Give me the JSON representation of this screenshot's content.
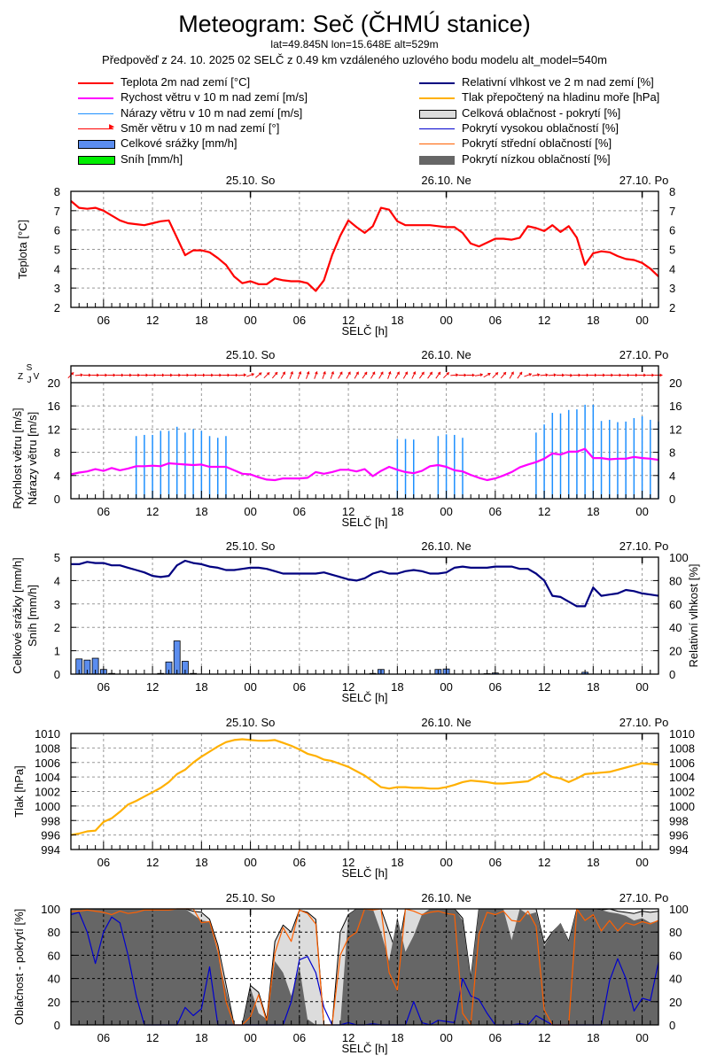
{
  "header": {
    "title": "Meteogram: Seč (ČHMÚ stanice)",
    "location": "lat=49.845N lon=15.648E alt=529m",
    "forecast_info": "Předpověď z 24. 10. 2025 02 SELČ z 0.49 km vzdáleného uzlového bodu modelu alt_model=540m"
  },
  "legend": {
    "left": [
      {
        "label": "Teplota 2m nad zemí [°C]",
        "symbol": "line",
        "color": "#ff0000"
      },
      {
        "label": "Rychost větru v 10 m nad zemí [m/s]",
        "symbol": "line",
        "color": "#ff00ff"
      },
      {
        "label": "Nárazy větru v 10 m nad zemí [m/s]",
        "symbol": "thinline",
        "color": "#1e90ff"
      },
      {
        "label": "Směr větru v 10 m nad zemí [°]",
        "symbol": "arrow",
        "color": "#ff0000"
      },
      {
        "label": "Celkové srážky [mm/h]",
        "symbol": "box",
        "color": "#5b8def"
      },
      {
        "label": "Sníh [mm/h]",
        "symbol": "box",
        "color": "#00ee00"
      }
    ],
    "right": [
      {
        "label": "Relativní vlhkost ve 2 m nad zemí [%]",
        "symbol": "line",
        "color": "#000080"
      },
      {
        "label": "Tlak přepočtený na hladinu moře [hPa]",
        "symbol": "line",
        "color": "#ffb000"
      },
      {
        "label": "Celková oblačnost - pokrytí [%]",
        "symbol": "box",
        "color": "#dcdcdc"
      },
      {
        "label": "Pokrytí vysokou oblačností [%]",
        "symbol": "thinline",
        "color": "#0000cd"
      },
      {
        "label": "Pokrytí střední oblačností [%]",
        "symbol": "thinline",
        "color": "#ff6000"
      },
      {
        "label": "Pokrytí nízkou oblačností [%]",
        "symbol": "solidbox",
        "color": "#666666"
      }
    ]
  },
  "chart_data": [
    {
      "type": "line",
      "id": "temperature",
      "title": "",
      "xlabel": "SELČ [h]",
      "ylabel": "Teplota [°C]",
      "x_start": "24.10. 02:00",
      "x_hours": 72,
      "day_labels": [
        {
          "label": "25.10. So",
          "hour": 22
        },
        {
          "label": "26.10. Ne",
          "hour": 46
        },
        {
          "label": "27.10. Po",
          "hour": 70
        }
      ],
      "xtick_labels": [
        "06",
        "12",
        "18",
        "00",
        "06",
        "12",
        "18",
        "00",
        "06",
        "12",
        "18",
        "00"
      ],
      "ylim": [
        2,
        8
      ],
      "yticks": [
        2,
        3,
        4,
        5,
        6,
        7,
        8
      ],
      "grid": true,
      "series": [
        {
          "name": "Teplota 2m nad zemí [°C]",
          "color": "#ff0000",
          "values": [
            7.5,
            7.15,
            7.1,
            7.15,
            7.0,
            6.75,
            6.5,
            6.35,
            6.3,
            6.25,
            6.35,
            6.45,
            6.5,
            5.6,
            4.7,
            4.95,
            4.95,
            4.85,
            4.55,
            4.2,
            3.6,
            3.25,
            3.35,
            3.2,
            3.2,
            3.5,
            3.4,
            3.35,
            3.35,
            3.25,
            2.85,
            3.4,
            4.7,
            5.7,
            6.5,
            6.15,
            5.85,
            6.2,
            7.15,
            7.05,
            6.45,
            6.25,
            6.25,
            6.25,
            6.25,
            6.2,
            6.15,
            6.15,
            5.85,
            5.3,
            5.15,
            5.35,
            5.55,
            5.55,
            5.5,
            5.6,
            6.2,
            6.1,
            5.95,
            6.25,
            5.9,
            6.2,
            5.6,
            4.2,
            4.8,
            4.9,
            4.85,
            4.65,
            4.5,
            4.45,
            4.3,
            4.0,
            3.6
          ]
        }
      ]
    },
    {
      "type": "line",
      "id": "wind",
      "xlabel": "SELČ [h]",
      "ylabel": "Rychlost větru [m/s]",
      "ylabel2": "Nárazy větru [m/s]",
      "direction_label": {
        "n": "S",
        "w": "Z",
        "s": "J",
        "e": "V"
      },
      "ylim": [
        0,
        20
      ],
      "yticks": [
        0,
        4,
        8,
        12,
        16,
        20
      ],
      "grid": true,
      "series": [
        {
          "name": "Rychost větru v 10 m nad zemí [m/s]",
          "color": "#ff00ff",
          "values": [
            4.2,
            4.5,
            4.7,
            5.1,
            4.8,
            5.3,
            4.9,
            5.2,
            5.6,
            5.6,
            5.7,
            5.6,
            6.1,
            6.0,
            5.9,
            5.8,
            5.9,
            5.5,
            5.5,
            5.5,
            4.9,
            4.3,
            4.2,
            3.7,
            3.3,
            3.2,
            3.5,
            3.5,
            3.5,
            3.6,
            4.6,
            4.3,
            4.6,
            5.0,
            5.0,
            4.7,
            5.1,
            3.9,
            4.8,
            5.5,
            5.0,
            4.6,
            4.4,
            4.8,
            5.6,
            5.8,
            5.5,
            4.9,
            4.7,
            4.1,
            3.6,
            3.2,
            3.5,
            4.0,
            4.6,
            5.4,
            5.9,
            6.3,
            6.9,
            7.8,
            7.6,
            8.1,
            8.1,
            8.6,
            7.0,
            7.0,
            6.8,
            6.9,
            6.9,
            7.2,
            7.0,
            6.9,
            6.7
          ]
        },
        {
          "name": "Nárazy větru v 10 m nad zemí [m/s]",
          "color": "#1e90ff",
          "type": "bars_thin",
          "values": [
            0,
            0,
            0,
            0,
            0,
            0,
            0,
            0,
            10.8,
            11,
            11,
            11.7,
            11.7,
            12.4,
            11.4,
            12,
            11.7,
            10.8,
            10.5,
            10.8,
            0,
            0,
            0,
            0,
            0,
            0,
            0,
            0,
            0,
            0,
            0,
            0,
            0,
            0,
            0,
            0,
            0,
            0,
            0,
            0,
            10.3,
            10.3,
            10.2,
            0,
            0,
            10.8,
            11.1,
            11.0,
            10.5,
            0,
            0,
            0,
            0,
            0,
            0,
            0,
            0,
            11.4,
            12.8,
            14.8,
            14.7,
            15.3,
            15.4,
            16.2,
            16.2,
            13.4,
            13.6,
            13.2,
            13.3,
            13.9,
            14.2,
            13.6,
            13.3
          ]
        },
        {
          "name": "Směr větru v 10 m nad zemí [°]",
          "color": "#ff0000",
          "type": "arrows",
          "values": [
            225,
            265,
            270,
            270,
            270,
            270,
            270,
            270,
            270,
            270,
            270,
            270,
            270,
            270,
            270,
            270,
            270,
            270,
            270,
            270,
            270,
            265,
            250,
            230,
            225,
            220,
            210,
            200,
            200,
            200,
            200,
            200,
            200,
            210,
            210,
            210,
            215,
            210,
            210,
            200,
            210,
            210,
            205,
            215,
            215,
            215,
            225,
            265,
            270,
            270,
            260,
            240,
            225,
            220,
            210,
            215,
            250,
            260,
            265,
            265,
            270,
            275,
            270,
            270,
            270,
            270,
            270,
            270,
            270,
            270,
            270,
            270,
            270
          ]
        }
      ]
    },
    {
      "type": "bar",
      "id": "precip_humidity",
      "xlabel": "SELČ [h]",
      "ylabel": "Celkové srážky [mm/h]",
      "ylabel2": "Sníh [mm/h]",
      "ylabel_right": "Relativní vlhkost [%]",
      "ylim": [
        0,
        5
      ],
      "yticks": [
        0,
        1,
        2,
        3,
        4,
        5
      ],
      "ylim_right": [
        0,
        100
      ],
      "yticks_right": [
        0,
        20,
        40,
        60,
        80,
        100
      ],
      "grid": true,
      "series": [
        {
          "name": "Celkové srážky [mm/h]",
          "color": "#5b8def",
          "values": [
            0,
            0.65,
            0.6,
            0.68,
            0.2,
            0.03,
            0,
            0,
            0,
            0,
            0,
            0.03,
            0.52,
            1.42,
            0.55,
            0.03,
            0,
            0,
            0,
            0,
            0,
            0,
            0,
            0,
            0,
            0,
            0,
            0,
            0,
            0,
            0,
            0,
            0,
            0,
            0,
            0,
            0,
            0.03,
            0.2,
            0,
            0,
            0,
            0,
            0,
            0,
            0.2,
            0.22,
            0,
            0,
            0,
            0,
            0.02,
            0.05,
            0,
            0,
            0,
            0,
            0,
            0,
            0,
            0,
            0,
            0,
            0.08,
            0,
            0,
            0,
            0,
            0,
            0,
            0,
            0,
            0
          ]
        },
        {
          "name": "Sníh [mm/h]",
          "color": "#00ee00",
          "values": []
        },
        {
          "name": "Relativní vlhkost ve 2 m nad zemí [%]",
          "color": "#000080",
          "axis": "right",
          "values": [
            94,
            94,
            96,
            95,
            95,
            93,
            93,
            91,
            89,
            87,
            84,
            83,
            84,
            93,
            97,
            95,
            94,
            92,
            91,
            89,
            89,
            90,
            91,
            91,
            90,
            88,
            86,
            86,
            86,
            86,
            86,
            87,
            85,
            83,
            81,
            80,
            82,
            86,
            88,
            86,
            86,
            88,
            89,
            88,
            86,
            86,
            87,
            91,
            92,
            91,
            91,
            91,
            92,
            92,
            92,
            90,
            90,
            86,
            80,
            67,
            66,
            62,
            58,
            58,
            74,
            67,
            68,
            69,
            72,
            71,
            69,
            68,
            67
          ]
        }
      ]
    },
    {
      "type": "line",
      "id": "pressure",
      "xlabel": "SELČ [h]",
      "ylabel": "Tlak [hPa]",
      "ylim": [
        994,
        1010
      ],
      "yticks": [
        994,
        996,
        998,
        1000,
        1002,
        1004,
        1006,
        1008,
        1010
      ],
      "grid": true,
      "series": [
        {
          "name": "Tlak přepočtený na hladinu moře [hPa]",
          "color": "#ffb000",
          "values": [
            996.0,
            996.2,
            996.5,
            996.6,
            997.8,
            998.3,
            999.2,
            1000.2,
            1000.7,
            1001.3,
            1001.9,
            1002.5,
            1003.3,
            1004.4,
            1005.0,
            1006.0,
            1006.8,
            1007.5,
            1008.2,
            1008.8,
            1009.1,
            1009.2,
            1009.1,
            1009.0,
            1009.0,
            1009.1,
            1008.7,
            1008.3,
            1007.8,
            1007.2,
            1006.9,
            1006.4,
            1006.2,
            1005.8,
            1005.4,
            1004.8,
            1004.2,
            1003.4,
            1002.6,
            1002.4,
            1002.6,
            1002.6,
            1002.5,
            1002.5,
            1002.4,
            1002.4,
            1002.6,
            1002.9,
            1003.3,
            1003.5,
            1003.4,
            1003.3,
            1003.1,
            1003.1,
            1003.2,
            1003.3,
            1003.4,
            1004.0,
            1004.6,
            1004.0,
            1003.8,
            1003.3,
            1003.8,
            1004.4,
            1004.5,
            1004.6,
            1004.7,
            1005.0,
            1005.3,
            1005.6,
            1005.9,
            1005.8,
            1005.7
          ]
        }
      ]
    },
    {
      "type": "area",
      "id": "clouds",
      "xlabel": "SELČ [h]",
      "ylabel": "Oblačnost - pokrytí [%]",
      "ylim": [
        0,
        100
      ],
      "yticks": [
        0,
        20,
        40,
        60,
        80,
        100
      ],
      "grid": true,
      "series": [
        {
          "name": "Celková oblačnost - pokrytí [%]",
          "color": "#dcdcdc",
          "values": [
            100,
            100,
            100,
            100,
            100,
            100,
            100,
            100,
            100,
            100,
            100,
            100,
            100,
            100,
            100,
            98,
            97,
            91,
            69,
            35,
            0,
            0,
            34,
            28,
            5,
            72,
            86,
            80,
            99,
            97,
            91,
            0,
            0,
            80,
            95,
            100,
            100,
            100,
            100,
            80,
            60,
            100,
            100,
            100,
            100,
            100,
            100,
            100,
            92,
            40,
            100,
            100,
            100,
            100,
            100,
            100,
            100,
            100,
            70,
            80,
            87,
            72,
            100,
            100,
            100,
            99,
            100,
            98,
            97,
            96,
            98,
            97,
            98
          ]
        },
        {
          "name": "Pokrytí nízkou oblačností [%]",
          "color": "#666666",
          "values": [
            100,
            100,
            100,
            100,
            100,
            100,
            100,
            100,
            100,
            100,
            100,
            100,
            100,
            100,
            100,
            95,
            90,
            89,
            62,
            30,
            0,
            0,
            32,
            10,
            5,
            55,
            45,
            25,
            50,
            5,
            0,
            0,
            0,
            0,
            95,
            100,
            100,
            100,
            80,
            55,
            93,
            63,
            77,
            95,
            100,
            100,
            100,
            100,
            90,
            40,
            100,
            100,
            100,
            100,
            73,
            100,
            95,
            97,
            68,
            80,
            88,
            72,
            100,
            100,
            100,
            99,
            97,
            96,
            94,
            90,
            92,
            88,
            90
          ]
        },
        {
          "name": "Pokrytí vysokou oblačností [%]",
          "color": "#0000cd",
          "values": [
            95,
            97,
            80,
            53,
            80,
            93,
            88,
            60,
            25,
            0,
            0,
            0,
            0,
            0,
            15,
            8,
            14,
            50,
            0,
            0,
            0,
            0,
            0,
            0,
            0,
            0,
            0,
            20,
            56,
            59,
            45,
            15,
            0,
            0,
            2,
            0,
            0,
            1,
            0,
            0,
            0,
            0,
            20,
            2,
            0,
            4,
            3,
            2,
            40,
            25,
            22,
            10,
            0,
            0,
            0,
            1,
            0,
            8,
            4,
            0,
            0,
            0,
            0,
            0,
            0,
            0,
            38,
            57,
            40,
            12,
            23,
            21,
            54
          ]
        },
        {
          "name": "Pokrytí střední oblačností [%]",
          "color": "#ff6000",
          "values": [
            98,
            98,
            99,
            98,
            97,
            95,
            98,
            96,
            97,
            99,
            99,
            null,
            99,
            100,
            100,
            100,
            88,
            89,
            65,
            20,
            0,
            0,
            7,
            26,
            3,
            62,
            84,
            72,
            99,
            96,
            87,
            0,
            0,
            60,
            75,
            80,
            100,
            99,
            100,
            45,
            30,
            100,
            98,
            95,
            97,
            98,
            96,
            95,
            10,
            0,
            78,
            97,
            95,
            98,
            90,
            89,
            98,
            85,
            13,
            0,
            0,
            0,
            100,
            90,
            95,
            81,
            90,
            81,
            88,
            86,
            89,
            87,
            90
          ]
        }
      ]
    }
  ]
}
